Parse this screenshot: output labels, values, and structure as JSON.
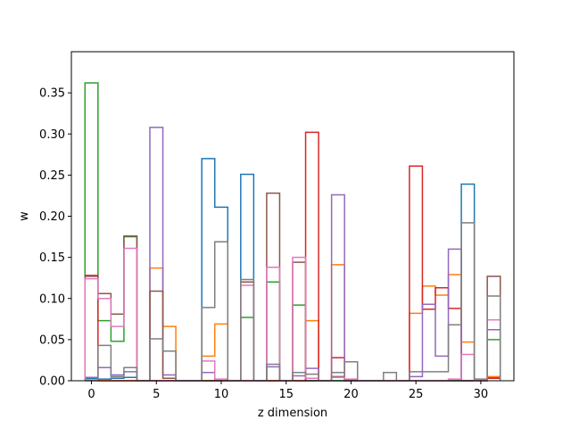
{
  "chart_data": {
    "type": "line",
    "subtype": "step-histogram",
    "xlabel": "z dimension",
    "ylabel": "w",
    "xlim": [
      -1.55,
      32.55
    ],
    "ylim": [
      0,
      0.4
    ],
    "x_ticks": [
      0,
      5,
      10,
      15,
      20,
      25,
      30
    ],
    "y_ticks": [
      0.0,
      0.05,
      0.1,
      0.15,
      0.2,
      0.25,
      0.3,
      0.35
    ],
    "y_tick_format": 2,
    "bins": 32,
    "grid": false,
    "legend": "none",
    "series": [
      {
        "color": "#1f77b4",
        "values": [
          0.003,
          0.002,
          0.003,
          0.004,
          0,
          0,
          0,
          0,
          0,
          0.27,
          0.211,
          0,
          0.251,
          0,
          0,
          0,
          0,
          0,
          0,
          0,
          0,
          0,
          0,
          0,
          0,
          0,
          0,
          0,
          0,
          0.239,
          0,
          0.004
        ]
      },
      {
        "color": "#ff7f0e",
        "values": [
          0,
          0,
          0,
          0,
          0,
          0.137,
          0.066,
          0,
          0,
          0.03,
          0.069,
          0,
          0,
          0,
          0,
          0,
          0,
          0.073,
          0,
          0.141,
          0,
          0,
          0,
          0,
          0,
          0.082,
          0.115,
          0.104,
          0.129,
          0.047,
          0,
          0.005
        ]
      },
      {
        "color": "#2ca02c",
        "values": [
          0.362,
          0.073,
          0.048,
          0.175,
          0,
          0,
          0,
          0,
          0,
          0,
          0,
          0,
          0.077,
          0,
          0.12,
          0,
          0.092,
          0,
          0,
          0,
          0,
          0,
          0,
          0,
          0,
          0,
          0,
          0,
          0,
          0,
          0,
          0.05
        ]
      },
      {
        "color": "#d62728",
        "values": [
          0.128,
          0,
          0,
          0,
          0,
          0,
          0,
          0,
          0,
          0,
          0,
          0,
          0,
          0,
          0,
          0,
          0,
          0.302,
          0,
          0.028,
          0,
          0,
          0,
          0,
          0,
          0.261,
          0.087,
          0.113,
          0.088,
          0,
          0,
          0.003
        ]
      },
      {
        "color": "#9467bd",
        "values": [
          0.004,
          0.016,
          0.007,
          0.011,
          0,
          0.308,
          0.007,
          0,
          0,
          0.01,
          0,
          0,
          0,
          0,
          0.017,
          0,
          0.006,
          0.015,
          0,
          0.226,
          0.001,
          0,
          0,
          0,
          0,
          0.005,
          0.093,
          0.03,
          0.16,
          0,
          0,
          0.062
        ]
      },
      {
        "color": "#8c564b",
        "values": [
          0.127,
          0.106,
          0.081,
          0.176,
          0,
          0.109,
          0.003,
          0,
          0,
          0,
          0,
          0,
          0.12,
          0,
          0.228,
          0,
          0.144,
          0,
          0,
          0.005,
          0,
          0,
          0,
          0,
          0,
          0,
          0,
          0,
          0,
          0,
          0,
          0.127
        ]
      },
      {
        "color": "#e377c2",
        "values": [
          0.124,
          0.1,
          0.066,
          0.161,
          0,
          0,
          0,
          0,
          0,
          0.024,
          0.002,
          0,
          0.116,
          0,
          0.138,
          0,
          0.15,
          0.003,
          0,
          0.004,
          0.002,
          0,
          0,
          0,
          0,
          0,
          0,
          0,
          0.002,
          0.032,
          0,
          0.074
        ]
      },
      {
        "color": "#7f7f7f",
        "values": [
          0.001,
          0.043,
          0.005,
          0.016,
          0,
          0.051,
          0.036,
          0,
          0,
          0.089,
          0.169,
          0,
          0.123,
          0,
          0.02,
          0,
          0.01,
          0.008,
          0,
          0.01,
          0.023,
          0,
          0,
          0.01,
          0,
          0.011,
          0.011,
          0.011,
          0.068,
          0.192,
          0.002,
          0.103
        ]
      }
    ]
  }
}
